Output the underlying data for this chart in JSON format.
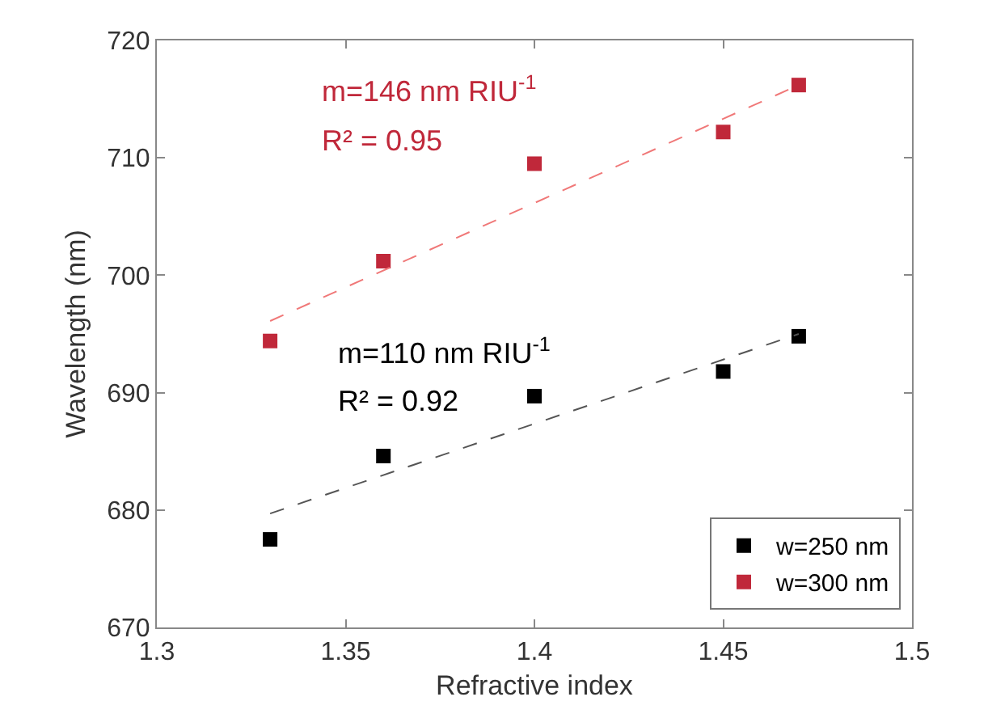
{
  "chart_data": {
    "type": "scatter",
    "xlabel": "Refractive index",
    "ylabel": "Wavelength (nm)",
    "xlim": [
      1.3,
      1.5
    ],
    "xticks": [
      1.3,
      1.35,
      1.4,
      1.45,
      1.5
    ],
    "ylim": [
      670,
      720
    ],
    "yticks": [
      670,
      680,
      690,
      700,
      710,
      720
    ],
    "grid": false,
    "legend": "bottom right",
    "marker": "square",
    "series": [
      {
        "name": "w=250 nm",
        "color": "#000000",
        "x": [
          1.33,
          1.36,
          1.4,
          1.45,
          1.47
        ],
        "values": [
          677.5,
          684.6,
          689.7,
          691.8,
          694.8
        ]
      },
      {
        "name": "w=300 nm",
        "color": "#c0283a",
        "x": [
          1.33,
          1.36,
          1.4,
          1.45,
          1.47
        ],
        "values": [
          694.4,
          701.2,
          709.5,
          712.2,
          716.2
        ]
      },
      {
        "type": "line",
        "color": "#555555",
        "line_style": "dashed",
        "marker": "none",
        "x": [
          1.33,
          1.47
        ],
        "values": [
          679.7,
          695.0
        ]
      },
      {
        "type": "line",
        "color": "#f07878",
        "line_style": "dashed",
        "marker": "none",
        "x": [
          1.33,
          1.47
        ],
        "values": [
          696.1,
          716.2
        ]
      }
    ],
    "annotations": [
      "m=110 nm RIU$^{-1}$",
      "R² = 0.92",
      "m=146 nm RIU$^{-1}$",
      "R² = 0.95"
    ]
  }
}
